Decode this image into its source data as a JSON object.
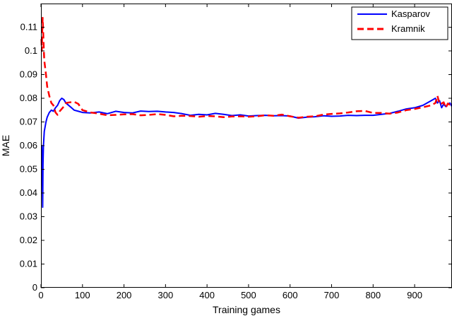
{
  "chart_data": {
    "type": "line",
    "xlabel": "Training games",
    "ylabel": "MAE",
    "xlim": [
      0,
      990
    ],
    "ylim": [
      0,
      0.12
    ],
    "xticks": [
      0,
      100,
      200,
      300,
      400,
      500,
      600,
      700,
      800,
      900
    ],
    "yticks": [
      0,
      0.01,
      0.02,
      0.03,
      0.04,
      0.05,
      0.06,
      0.07,
      0.08,
      0.09,
      0.1,
      0.11
    ],
    "ytick_labels": [
      "0",
      "0.01",
      "0.02",
      "0.03",
      "0.04",
      "0.05",
      "0.06",
      "0.07",
      "0.08",
      "0.09",
      "0.1",
      "0.11"
    ],
    "grid": false,
    "legend_position": "top-right",
    "series": [
      {
        "name": "Kasparov",
        "color": "#0000ff",
        "style": "solid",
        "x": [
          1,
          2,
          3,
          4,
          5,
          6,
          7,
          8,
          10,
          12,
          15,
          20,
          25,
          30,
          35,
          40,
          45,
          50,
          55,
          60,
          70,
          80,
          90,
          100,
          120,
          140,
          160,
          180,
          200,
          220,
          240,
          260,
          280,
          300,
          320,
          340,
          360,
          380,
          400,
          420,
          440,
          460,
          480,
          500,
          520,
          540,
          560,
          580,
          600,
          620,
          640,
          660,
          680,
          700,
          720,
          740,
          760,
          780,
          800,
          820,
          840,
          860,
          880,
          900,
          920,
          940,
          950,
          955,
          960,
          965,
          970,
          975,
          980,
          985,
          990
        ],
        "y": [
          0.06,
          0.06,
          0.05,
          0.034,
          0.052,
          0.06,
          0.063,
          0.066,
          0.068,
          0.07,
          0.072,
          0.074,
          0.075,
          0.0745,
          0.076,
          0.077,
          0.079,
          0.08,
          0.0795,
          0.078,
          0.0765,
          0.075,
          0.0745,
          0.074,
          0.0738,
          0.0742,
          0.0735,
          0.0745,
          0.074,
          0.0738,
          0.0746,
          0.0744,
          0.0745,
          0.0742,
          0.074,
          0.0735,
          0.0728,
          0.0732,
          0.073,
          0.0736,
          0.0732,
          0.0727,
          0.073,
          0.0725,
          0.0727,
          0.0728,
          0.0726,
          0.0727,
          0.0725,
          0.0716,
          0.072,
          0.0722,
          0.0726,
          0.0724,
          0.0725,
          0.0728,
          0.0727,
          0.0728,
          0.0728,
          0.0732,
          0.0736,
          0.0745,
          0.0755,
          0.076,
          0.077,
          0.079,
          0.08,
          0.078,
          0.079,
          0.076,
          0.0775,
          0.0765,
          0.0775,
          0.078,
          0.0765
        ]
      },
      {
        "name": "Kramnik",
        "color": "#ff0000",
        "style": "dashed",
        "x": [
          1,
          2,
          3,
          4,
          5,
          6,
          7,
          8,
          10,
          12,
          15,
          20,
          25,
          30,
          35,
          40,
          45,
          50,
          55,
          60,
          70,
          80,
          90,
          100,
          120,
          140,
          160,
          180,
          200,
          220,
          240,
          260,
          280,
          300,
          320,
          340,
          360,
          380,
          400,
          420,
          440,
          460,
          480,
          500,
          520,
          540,
          560,
          580,
          600,
          620,
          640,
          660,
          680,
          700,
          720,
          740,
          760,
          780,
          800,
          820,
          840,
          860,
          880,
          900,
          920,
          940,
          950,
          955,
          960,
          965,
          970,
          975,
          980,
          985,
          990
        ],
        "y": [
          0.105,
          0.1,
          0.108,
          0.114,
          0.11,
          0.105,
          0.1,
          0.096,
          0.093,
          0.09,
          0.085,
          0.081,
          0.078,
          0.077,
          0.074,
          0.073,
          0.0745,
          0.0755,
          0.0765,
          0.078,
          0.0783,
          0.0785,
          0.0776,
          0.075,
          0.074,
          0.0735,
          0.0728,
          0.073,
          0.0732,
          0.0733,
          0.0728,
          0.073,
          0.0733,
          0.073,
          0.0724,
          0.0726,
          0.0725,
          0.0722,
          0.0725,
          0.0724,
          0.072,
          0.0723,
          0.0724,
          0.0722,
          0.0724,
          0.0728,
          0.0726,
          0.0731,
          0.0724,
          0.0718,
          0.0722,
          0.0724,
          0.0731,
          0.0734,
          0.0736,
          0.074,
          0.0745,
          0.0747,
          0.0738,
          0.0738,
          0.0735,
          0.074,
          0.075,
          0.0755,
          0.0762,
          0.077,
          0.078,
          0.081,
          0.0775,
          0.0778,
          0.0783,
          0.076,
          0.0778,
          0.0772,
          0.0765
        ]
      }
    ]
  }
}
